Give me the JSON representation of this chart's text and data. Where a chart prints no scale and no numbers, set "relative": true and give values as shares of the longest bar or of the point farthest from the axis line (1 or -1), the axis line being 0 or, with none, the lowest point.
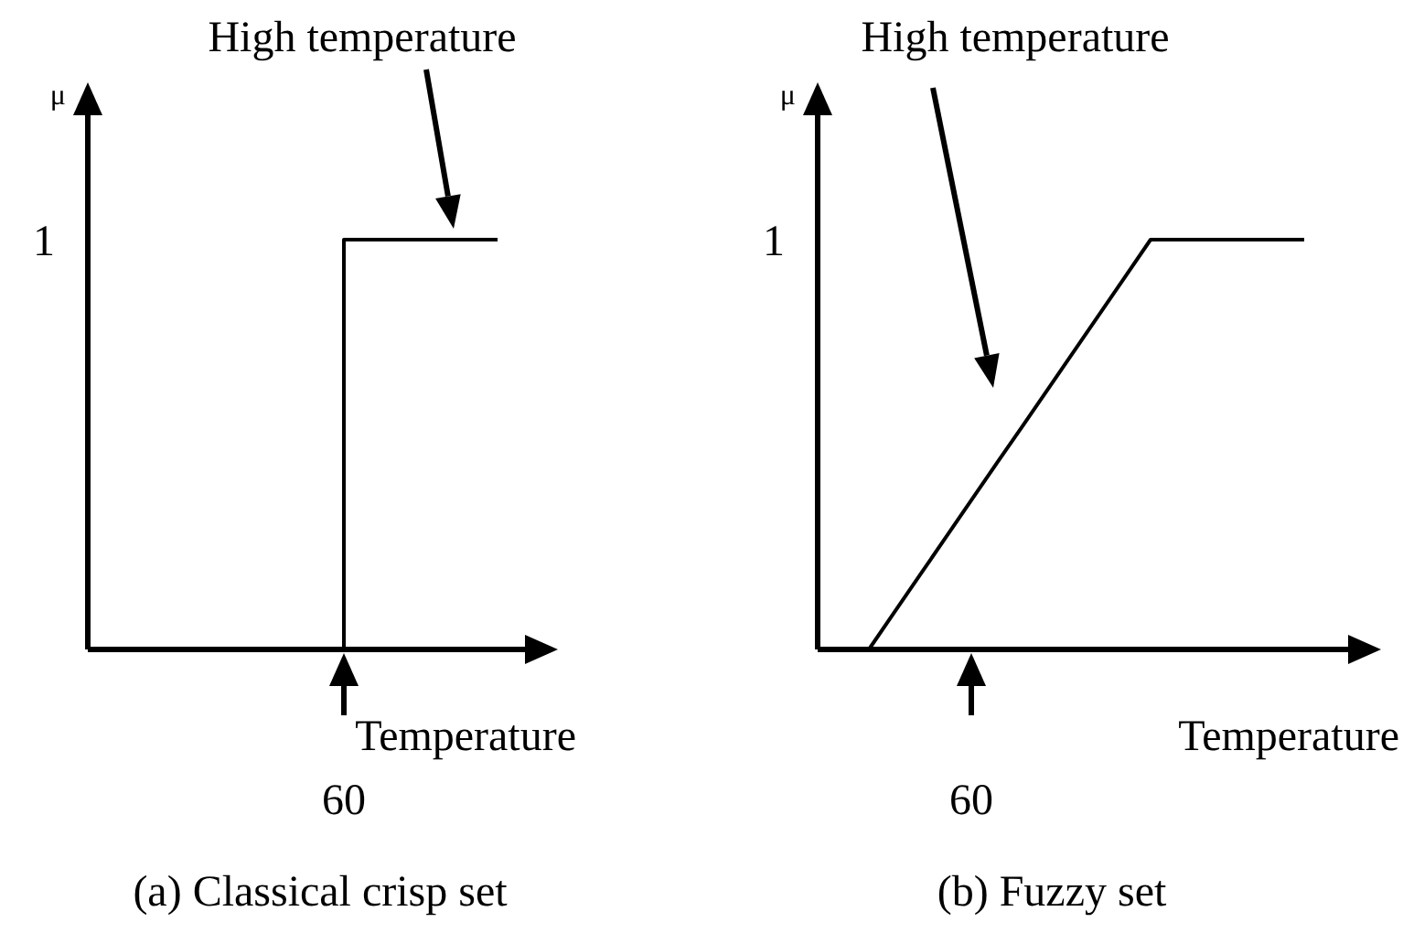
{
  "chart_data": [
    {
      "type": "step",
      "title": "(a) Classical crisp set",
      "xlabel": "Temperature",
      "ylabel": "μ",
      "relative": true,
      "marker": "none",
      "line_style": "solid",
      "categories": [
        null,
        null,
        null,
        null,
        null,
        null,
        null,
        null,
        null
      ],
      "series": [
        {
          "color": "#000000",
          "values": [
            null,
            null,
            null,
            null,
            null,
            0,
            1,
            1,
            1
          ]
        }
      ],
      "annotations": [
        "High temperature",
        "1",
        "60"
      ]
    },
    {
      "type": "line",
      "title": "(b) Fuzzy set",
      "xlabel": "Temperature",
      "ylabel": "μ",
      "relative": true,
      "marker": "none",
      "line_style": "solid",
      "categories": [
        null,
        null,
        null,
        null,
        null,
        null,
        null,
        null,
        null,
        null,
        null,
        null,
        null,
        null,
        null,
        null,
        null,
        null,
        null,
        null,
        null
      ],
      "series": [
        {
          "color": "#000000",
          "values": [
            null,
            null,
            0,
            0.091,
            0.182,
            0.273,
            0.364,
            0.455,
            0.545,
            0.636,
            0.727,
            0.818,
            0.909,
            1,
            1,
            1,
            1,
            1,
            1,
            1,
            null
          ]
        }
      ],
      "annotations": [
        "High temperature",
        "1",
        "60"
      ]
    }
  ]
}
